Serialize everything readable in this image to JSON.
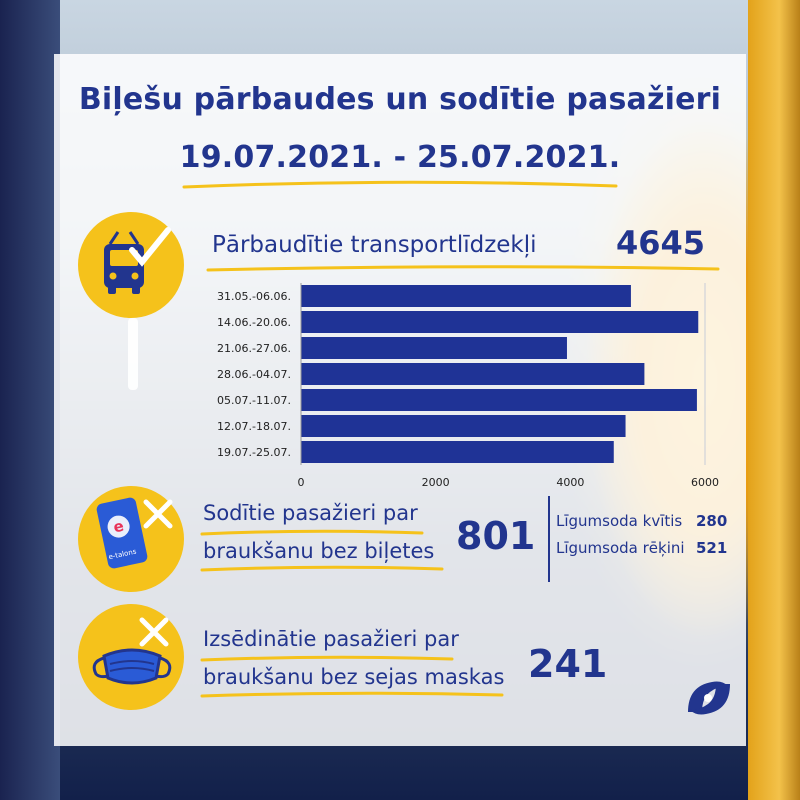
{
  "title_line1": "Biļešu pārbaudes un sodītie pasažieri",
  "title_line2": "19.07.2021. - 25.07.2021.",
  "vehicles": {
    "label": "Pārbaudītie transportlīdzekļi",
    "value": "4645"
  },
  "fines": {
    "label_line1": "Sodītie pasažieri par",
    "label_line2": "braukšanu bez biļetes",
    "value": "801",
    "breakdown": [
      {
        "label": "Līgumsoda kvītis",
        "value": "280"
      },
      {
        "label": "Līgumsoda rēķini",
        "value": "521"
      }
    ]
  },
  "masks": {
    "label_line1": "Izsēdinātie pasažieri par",
    "label_line2": "braukšanu bez sejas maskas",
    "value": "241"
  },
  "card_brand": "e-talons",
  "colors": {
    "brand_blue": "#22358e",
    "bar_blue": "#1f3396",
    "accent_yellow": "#f5c21b"
  },
  "chart_data": {
    "type": "bar",
    "orientation": "horizontal",
    "categories": [
      "31.05.-06.06.",
      "14.06.-20.06.",
      "21.06.-27.06.",
      "28.06.-04.07.",
      "05.07.-11.07.",
      "12.07.-18.07.",
      "19.07.-25.07."
    ],
    "values": [
      4900,
      5900,
      3950,
      5100,
      5880,
      4820,
      4645
    ],
    "xlim": [
      0,
      6000
    ],
    "xticks": [
      0,
      2000,
      4000,
      6000
    ],
    "grid": false,
    "xlabel": "",
    "ylabel": ""
  }
}
